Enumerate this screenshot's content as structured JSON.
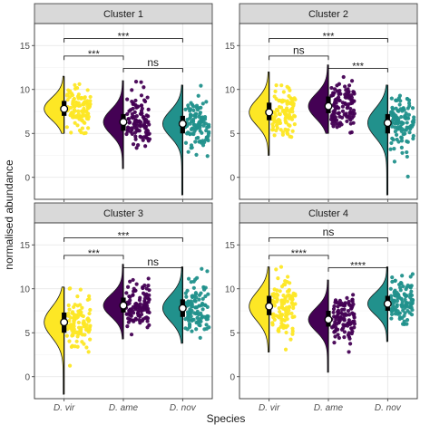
{
  "chart_data": {
    "type": "raincloud",
    "xlabel": "Species",
    "ylabel": "normalised abundance",
    "ylim": [
      -2.5,
      17.5
    ],
    "yticks": [
      0,
      5,
      10,
      15
    ],
    "categories": [
      "D. vir",
      "D. ame",
      "D. nov"
    ],
    "colors": {
      "D. vir": "#fde725",
      "D. ame": "#440154",
      "D. nov": "#21918c"
    },
    "grid": true,
    "panels": [
      {
        "title": "Cluster 1",
        "groups": [
          {
            "species": "D. vir",
            "min": 5.0,
            "q1": 7.0,
            "median": 7.8,
            "q3": 8.7,
            "max": 11.5
          },
          {
            "species": "D. ame",
            "min": 1.0,
            "q1": 5.3,
            "median": 6.3,
            "q3": 7.2,
            "max": 11.0
          },
          {
            "species": "D. nov",
            "min": -2.0,
            "q1": 5.0,
            "median": 6.1,
            "q3": 7.0,
            "max": 10.5
          }
        ],
        "comparisons": [
          {
            "groups": [
              "D. vir",
              "D. ame"
            ],
            "label": "***"
          },
          {
            "groups": [
              "D. vir",
              "D. nov"
            ],
            "label": "***"
          },
          {
            "groups": [
              "D. ame",
              "D. nov"
            ],
            "label": "ns"
          }
        ]
      },
      {
        "title": "Cluster 2",
        "groups": [
          {
            "species": "D. vir",
            "min": 2.5,
            "q1": 6.5,
            "median": 7.4,
            "q3": 8.5,
            "max": 12.0
          },
          {
            "species": "D. ame",
            "min": 5.0,
            "q1": 7.3,
            "median": 8.1,
            "q3": 9.2,
            "max": 12.8
          },
          {
            "species": "D. nov",
            "min": -2.0,
            "q1": 5.0,
            "median": 6.2,
            "q3": 7.2,
            "max": 10.5
          }
        ],
        "comparisons": [
          {
            "groups": [
              "D. vir",
              "D. ame"
            ],
            "label": "ns"
          },
          {
            "groups": [
              "D. vir",
              "D. nov"
            ],
            "label": "***"
          },
          {
            "groups": [
              "D. ame",
              "D. nov"
            ],
            "label": "***"
          }
        ]
      },
      {
        "title": "Cluster 3",
        "groups": [
          {
            "species": "D. vir",
            "min": -2.0,
            "q1": 5.0,
            "median": 6.2,
            "q3": 7.3,
            "max": 10.2
          },
          {
            "species": "D. ame",
            "min": 4.3,
            "q1": 7.3,
            "median": 8.1,
            "q3": 9.0,
            "max": 12.8
          },
          {
            "species": "D. nov",
            "min": 3.8,
            "q1": 6.8,
            "median": 7.8,
            "q3": 8.8,
            "max": 12.5
          }
        ],
        "comparisons": [
          {
            "groups": [
              "D. vir",
              "D. ame"
            ],
            "label": "***"
          },
          {
            "groups": [
              "D. vir",
              "D. nov"
            ],
            "label": "***"
          },
          {
            "groups": [
              "D. ame",
              "D. nov"
            ],
            "label": "ns"
          }
        ]
      },
      {
        "title": "Cluster 4",
        "groups": [
          {
            "species": "D. vir",
            "min": 2.8,
            "q1": 7.0,
            "median": 8.0,
            "q3": 9.2,
            "max": 12.5
          },
          {
            "species": "D. ame",
            "min": 0.5,
            "q1": 5.7,
            "median": 6.5,
            "q3": 7.5,
            "max": 11.0
          },
          {
            "species": "D. nov",
            "min": 4.0,
            "q1": 7.5,
            "median": 8.3,
            "q3": 9.2,
            "max": 12.5
          }
        ],
        "comparisons": [
          {
            "groups": [
              "D. vir",
              "D. ame"
            ],
            "label": "****"
          },
          {
            "groups": [
              "D. vir",
              "D. nov"
            ],
            "label": "ns"
          },
          {
            "groups": [
              "D. ame",
              "D. nov"
            ],
            "label": "****"
          }
        ]
      }
    ]
  }
}
